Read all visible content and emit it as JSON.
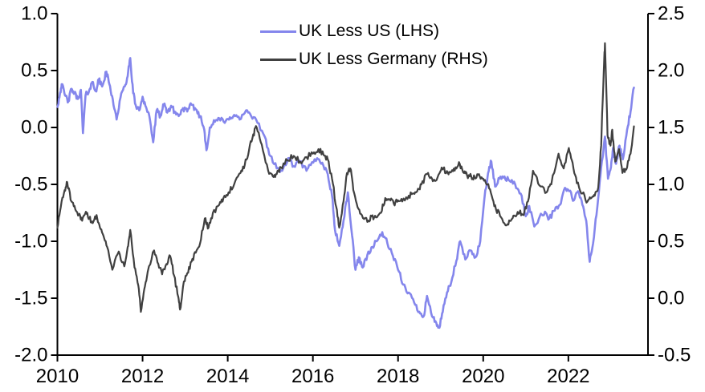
{
  "chart_data": {
    "type": "line",
    "title": "",
    "grid": false,
    "legend": {
      "position": "top-center"
    },
    "x_axis": {
      "tick_values": [
        2010,
        2012,
        2014,
        2016,
        2018,
        2020,
        2022
      ],
      "tick_labels": [
        "2010",
        "2012",
        "2014",
        "2016",
        "2018",
        "2020",
        "2022"
      ],
      "range": [
        2010,
        2023.87
      ]
    },
    "left_axis": {
      "tick_values": [
        1.0,
        0.5,
        0.0,
        -0.5,
        -1.0,
        -1.5,
        -2.0
      ],
      "tick_labels": [
        "1.0",
        "0.5",
        "0.0",
        "-0.5",
        "-1.0",
        "-1.5",
        "-2.0"
      ],
      "range": [
        -2.0,
        1.0
      ]
    },
    "right_axis": {
      "tick_values": [
        2.5,
        2.0,
        1.5,
        1.0,
        0.5,
        0.0,
        -0.5
      ],
      "tick_labels": [
        "2.5",
        "2.0",
        "1.5",
        "1.0",
        "0.5",
        "0.0",
        "-0.5"
      ],
      "range": [
        -0.5,
        2.5
      ]
    },
    "noise_texture_amplitude": 0.025,
    "series": [
      {
        "name": "UK Less US (LHS)",
        "axis": "left",
        "color": "#8486EC",
        "x": [
          2010.0,
          2010.06,
          2010.1,
          2010.18,
          2010.26,
          2010.33,
          2010.4,
          2010.48,
          2010.55,
          2010.6,
          2010.66,
          2010.75,
          2010.82,
          2010.9,
          2010.97,
          2011.05,
          2011.15,
          2011.22,
          2011.3,
          2011.39,
          2011.48,
          2011.58,
          2011.65,
          2011.71,
          2011.78,
          2011.85,
          2011.92,
          2012.0,
          2012.08,
          2012.16,
          2012.25,
          2012.33,
          2012.42,
          2012.5,
          2012.58,
          2012.67,
          2012.75,
          2012.85,
          2012.95,
          2013.05,
          2013.15,
          2013.25,
          2013.35,
          2013.45,
          2013.5,
          2013.58,
          2013.7,
          2013.8,
          2013.93,
          2014.05,
          2014.15,
          2014.28,
          2014.43,
          2014.55,
          2014.7,
          2014.87,
          2015.0,
          2015.15,
          2015.28,
          2015.42,
          2015.55,
          2015.7,
          2015.85,
          2015.95,
          2016.1,
          2016.22,
          2016.35,
          2016.45,
          2016.52,
          2016.62,
          2016.72,
          2016.82,
          2016.92,
          2017.0,
          2017.08,
          2017.17,
          2017.28,
          2017.4,
          2017.5,
          2017.63,
          2017.75,
          2017.88,
          2018.0,
          2018.12,
          2018.25,
          2018.38,
          2018.5,
          2018.6,
          2018.68,
          2018.8,
          2018.9,
          2018.97,
          2019.05,
          2019.15,
          2019.25,
          2019.37,
          2019.46,
          2019.58,
          2019.7,
          2019.82,
          2019.93,
          2020.05,
          2020.13,
          2020.19,
          2020.28,
          2020.38,
          2020.5,
          2020.62,
          2020.75,
          2020.88,
          2021.0,
          2021.08,
          2021.2,
          2021.33,
          2021.45,
          2021.55,
          2021.68,
          2021.8,
          2021.92,
          2022.02,
          2022.13,
          2022.23,
          2022.33,
          2022.42,
          2022.5,
          2022.58,
          2022.68,
          2022.77,
          2022.86,
          2022.93,
          2023.0,
          2023.05,
          2023.12,
          2023.2,
          2023.28,
          2023.38,
          2023.46,
          2023.54
        ],
        "y": [
          0.18,
          0.3,
          0.38,
          0.28,
          0.23,
          0.34,
          0.3,
          0.25,
          0.33,
          -0.05,
          0.28,
          0.33,
          0.4,
          0.32,
          0.42,
          0.36,
          0.49,
          0.38,
          0.25,
          0.07,
          0.26,
          0.36,
          0.45,
          0.61,
          0.3,
          0.18,
          0.15,
          0.27,
          0.18,
          0.1,
          -0.13,
          0.15,
          0.1,
          0.2,
          0.13,
          0.19,
          0.14,
          0.1,
          0.17,
          0.14,
          0.2,
          0.16,
          0.1,
          -0.02,
          -0.2,
          0.0,
          0.05,
          0.08,
          0.04,
          0.09,
          0.11,
          0.07,
          0.15,
          0.1,
          0.04,
          -0.08,
          -0.25,
          -0.36,
          -0.38,
          -0.27,
          -0.34,
          -0.3,
          -0.38,
          -0.33,
          -0.27,
          -0.31,
          -0.41,
          -0.6,
          -0.9,
          -1.04,
          -0.82,
          -0.57,
          -0.95,
          -1.25,
          -1.14,
          -1.23,
          -1.12,
          -1.05,
          -1.0,
          -0.92,
          -1.02,
          -1.13,
          -1.25,
          -1.38,
          -1.45,
          -1.54,
          -1.62,
          -1.66,
          -1.48,
          -1.66,
          -1.72,
          -1.76,
          -1.62,
          -1.45,
          -1.36,
          -1.17,
          -1.0,
          -1.16,
          -1.08,
          -1.14,
          -1.0,
          -0.55,
          -0.38,
          -0.3,
          -0.52,
          -0.45,
          -0.43,
          -0.47,
          -0.5,
          -0.58,
          -0.78,
          -0.69,
          -0.87,
          -0.78,
          -0.74,
          -0.8,
          -0.73,
          -0.68,
          -0.53,
          -0.56,
          -0.64,
          -0.56,
          -0.68,
          -0.82,
          -1.18,
          -1.02,
          -0.7,
          -0.35,
          -0.08,
          -0.45,
          -0.35,
          -0.18,
          -0.32,
          -0.16,
          -0.28,
          -0.02,
          0.14,
          0.35
        ]
      },
      {
        "name": "UK Less Germany (RHS)",
        "axis": "right",
        "color": "#404040",
        "x": [
          2010.0,
          2010.08,
          2010.17,
          2010.23,
          2010.33,
          2010.42,
          2010.5,
          2010.58,
          2010.67,
          2010.75,
          2010.83,
          2010.92,
          2011.0,
          2011.08,
          2011.17,
          2011.29,
          2011.44,
          2011.57,
          2011.65,
          2011.71,
          2011.81,
          2011.9,
          2011.96,
          2012.04,
          2012.12,
          2012.27,
          2012.37,
          2012.46,
          2012.56,
          2012.65,
          2012.74,
          2012.84,
          2012.88,
          2012.95,
          2013.05,
          2013.15,
          2013.25,
          2013.35,
          2013.46,
          2013.55,
          2013.65,
          2013.8,
          2013.9,
          2014.02,
          2014.15,
          2014.3,
          2014.4,
          2014.5,
          2014.6,
          2014.68,
          2014.8,
          2014.95,
          2015.06,
          2015.15,
          2015.25,
          2015.4,
          2015.55,
          2015.7,
          2015.85,
          2016.0,
          2016.13,
          2016.25,
          2016.35,
          2016.45,
          2016.55,
          2016.62,
          2016.72,
          2016.8,
          2016.88,
          2016.95,
          2017.05,
          2017.15,
          2017.28,
          2017.38,
          2017.48,
          2017.6,
          2017.7,
          2017.8,
          2017.9,
          2018.0,
          2018.1,
          2018.25,
          2018.37,
          2018.45,
          2018.55,
          2018.68,
          2018.8,
          2018.88,
          2019.0,
          2019.06,
          2019.17,
          2019.25,
          2019.35,
          2019.45,
          2019.55,
          2019.62,
          2019.72,
          2019.8,
          2019.9,
          2020.0,
          2020.1,
          2020.2,
          2020.3,
          2020.42,
          2020.55,
          2020.65,
          2020.75,
          2020.85,
          2020.95,
          2021.05,
          2021.17,
          2021.32,
          2021.49,
          2021.6,
          2021.77,
          2021.89,
          2022.01,
          2022.1,
          2022.2,
          2022.33,
          2022.45,
          2022.54,
          2022.62,
          2022.7,
          2022.77,
          2022.83,
          2022.86,
          2022.92,
          2022.99,
          2023.03,
          2023.1,
          2023.19,
          2023.27,
          2023.36,
          2023.46,
          2023.54
        ],
        "y": [
          0.62,
          0.8,
          0.95,
          1.02,
          0.85,
          0.78,
          0.73,
          0.68,
          0.76,
          0.7,
          0.66,
          0.73,
          0.62,
          0.55,
          0.45,
          0.25,
          0.41,
          0.28,
          0.45,
          0.6,
          0.27,
          0.11,
          -0.12,
          0.08,
          0.23,
          0.42,
          0.3,
          0.21,
          0.3,
          0.37,
          0.2,
          0.01,
          -0.1,
          0.1,
          0.22,
          0.32,
          0.4,
          0.48,
          0.7,
          0.62,
          0.75,
          0.82,
          0.88,
          0.93,
          1.0,
          1.1,
          1.17,
          1.3,
          1.44,
          1.5,
          1.35,
          1.12,
          1.07,
          1.09,
          1.15,
          1.21,
          1.25,
          1.2,
          1.24,
          1.27,
          1.31,
          1.26,
          1.22,
          1.05,
          0.8,
          0.62,
          0.85,
          1.1,
          1.14,
          0.95,
          0.8,
          0.73,
          0.67,
          0.72,
          0.71,
          0.75,
          0.88,
          0.87,
          0.83,
          0.86,
          0.85,
          0.9,
          0.92,
          0.94,
          1.0,
          1.09,
          1.05,
          1.03,
          1.12,
          1.14,
          1.1,
          1.11,
          1.15,
          1.18,
          1.1,
          1.08,
          1.07,
          1.06,
          1.09,
          1.05,
          1.0,
          0.9,
          0.78,
          0.71,
          0.64,
          0.68,
          0.72,
          0.75,
          0.73,
          0.85,
          1.12,
          0.99,
          0.93,
          1.0,
          1.27,
          1.14,
          1.32,
          1.19,
          1.01,
          0.92,
          0.85,
          0.88,
          0.9,
          0.97,
          1.34,
          1.99,
          2.24,
          1.43,
          1.34,
          1.48,
          1.2,
          1.31,
          1.1,
          1.13,
          1.27,
          1.51
        ]
      }
    ]
  }
}
